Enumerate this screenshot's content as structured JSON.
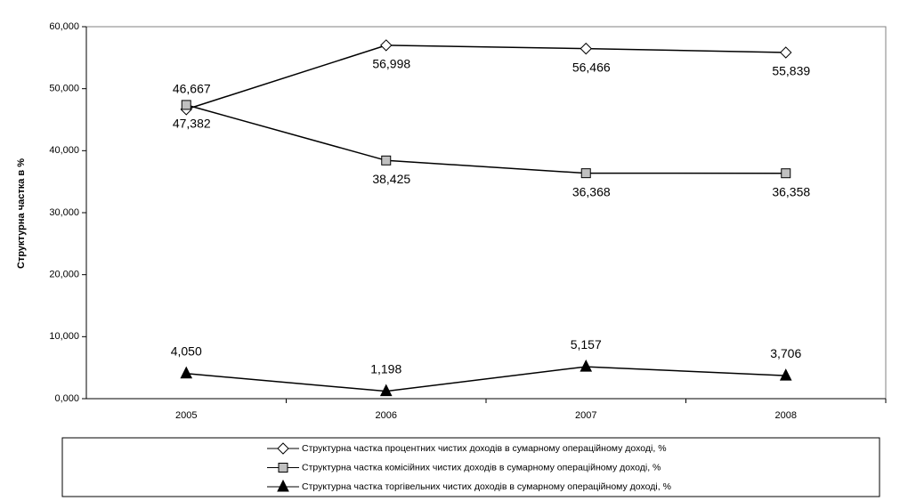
{
  "chart_data": {
    "type": "line",
    "y_label": "Структурна частка в %",
    "categories": [
      "2005",
      "2006",
      "2007",
      "2008"
    ],
    "series": [
      {
        "name": "Структурна частка процентних чистих доходів в сумарному операційному доході, %",
        "color": "#000000",
        "marker": "diamond",
        "marker_fill": "#ffffff",
        "values": [
          46.667,
          56.998,
          56.466,
          55.839
        ],
        "value_labels": [
          "46,667",
          "56,998",
          "56,466",
          "55,839"
        ]
      },
      {
        "name": "Структурна частка комісійних чистих доходів в сумарному операційному доході, %",
        "color": "#000000",
        "marker": "square",
        "marker_fill": "#c0c0c0",
        "values": [
          47.382,
          38.425,
          36.368,
          36.358
        ],
        "value_labels": [
          "47,382",
          "38,425",
          "36,368",
          "36,358"
        ]
      },
      {
        "name": "Структурна частка торгівельних чистих доходів в сумарному операційному доході, %",
        "color": "#000000",
        "marker": "triangle",
        "marker_fill": "#000000",
        "values": [
          4.05,
          1.198,
          5.157,
          3.706
        ],
        "value_labels": [
          "4,050",
          "1,198",
          "5,157",
          "3,706"
        ]
      }
    ],
    "ylim": [
      0,
      60
    ],
    "yticks": [
      {
        "value": 0,
        "label": "0,000"
      },
      {
        "value": 10,
        "label": "10,000"
      },
      {
        "value": 20,
        "label": "20,000"
      },
      {
        "value": 30,
        "label": "30,000"
      },
      {
        "value": 40,
        "label": "40,000"
      },
      {
        "value": 50,
        "label": "50,000"
      },
      {
        "value": 60,
        "label": "60,000"
      }
    ],
    "grid": false,
    "legend": "bottom"
  }
}
